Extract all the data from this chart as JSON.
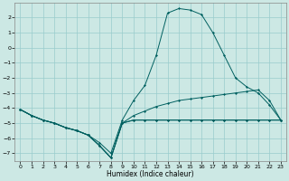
{
  "xlabel": "Humidex (Indice chaleur)",
  "bg_color": "#cce8e4",
  "grid_color": "#99cccc",
  "line_color": "#006060",
  "xlim": [
    -0.5,
    23.5
  ],
  "ylim": [
    -7.5,
    3.0
  ],
  "xticks": [
    0,
    1,
    2,
    3,
    4,
    5,
    6,
    7,
    8,
    9,
    10,
    11,
    12,
    13,
    14,
    15,
    16,
    17,
    18,
    19,
    20,
    21,
    22,
    23
  ],
  "yticks": [
    2,
    1,
    0,
    -1,
    -2,
    -3,
    -4,
    -5,
    -6,
    -7
  ],
  "line1_x": [
    0,
    1,
    2,
    3,
    4,
    5,
    6,
    7,
    8,
    9,
    10,
    11,
    12,
    13,
    14,
    15,
    16,
    17,
    18,
    19,
    20,
    21,
    22,
    23
  ],
  "line1_y": [
    -4.1,
    -4.5,
    -4.8,
    -5.0,
    -5.3,
    -5.5,
    -5.8,
    -6.3,
    -7.0,
    -4.8,
    -3.5,
    -2.5,
    -0.5,
    2.3,
    2.6,
    2.5,
    2.2,
    1.0,
    -0.5,
    -2.0,
    -2.6,
    -3.0,
    -3.8,
    -4.8
  ],
  "line2_x": [
    0,
    1,
    2,
    3,
    4,
    5,
    6,
    7,
    8,
    9,
    10,
    11,
    12,
    13,
    14,
    15,
    16,
    17,
    18,
    19,
    20,
    21,
    22,
    23
  ],
  "line2_y": [
    -4.1,
    -4.5,
    -4.8,
    -5.0,
    -5.3,
    -5.5,
    -5.8,
    -6.5,
    -7.3,
    -5.0,
    -4.5,
    -4.2,
    -3.9,
    -3.7,
    -3.5,
    -3.4,
    -3.3,
    -3.2,
    -3.1,
    -3.0,
    -2.9,
    -2.8,
    -3.5,
    -4.8
  ],
  "line3_x": [
    0,
    1,
    2,
    3,
    4,
    5,
    6,
    7,
    8,
    9,
    10,
    11,
    12,
    13,
    14,
    15,
    16,
    17,
    18,
    19,
    20,
    21,
    22,
    23
  ],
  "line3_y": [
    -4.1,
    -4.5,
    -4.8,
    -5.0,
    -5.3,
    -5.5,
    -5.8,
    -6.5,
    -7.3,
    -5.0,
    -4.8,
    -4.8,
    -4.8,
    -4.8,
    -4.8,
    -4.8,
    -4.8,
    -4.8,
    -4.8,
    -4.8,
    -4.8,
    -4.8,
    -4.8,
    -4.8
  ],
  "line4_x": [
    0,
    1,
    2,
    3,
    4,
    5,
    6,
    7,
    8,
    9,
    10,
    11,
    12,
    13,
    14,
    15,
    16,
    17,
    18,
    19,
    20,
    21,
    22,
    23
  ],
  "line4_y": [
    -4.1,
    -4.5,
    -4.8,
    -5.0,
    -5.3,
    -5.5,
    -5.8,
    -6.5,
    -7.3,
    -5.0,
    -4.8,
    -4.8,
    -4.8,
    -4.8,
    -4.8,
    -4.8,
    -4.8,
    -4.8,
    -4.8,
    -4.8,
    -4.8,
    -4.8,
    -4.8,
    -4.8
  ]
}
